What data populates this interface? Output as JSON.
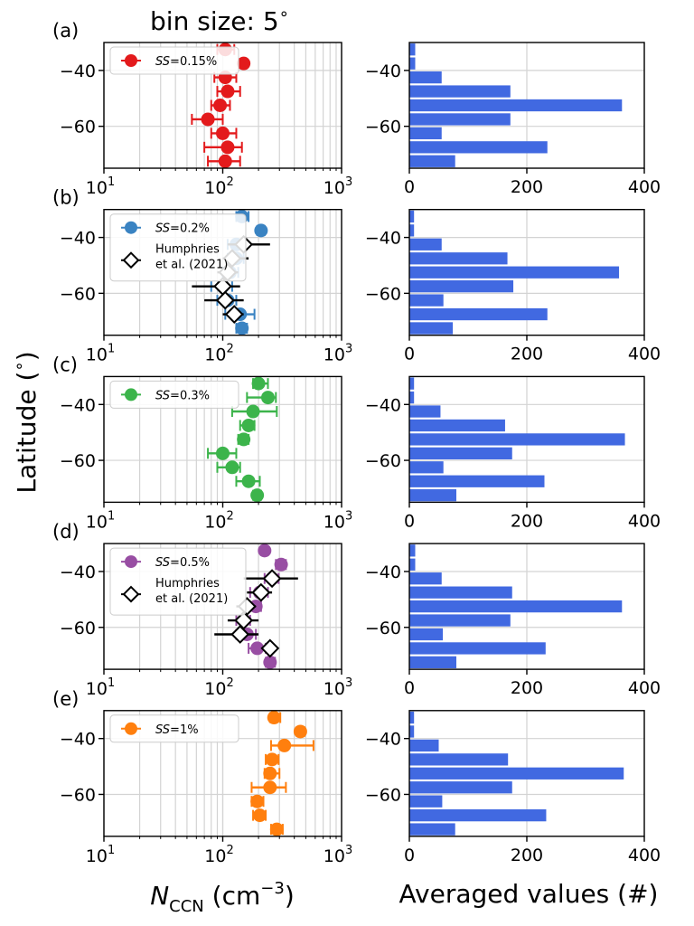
{
  "figure": {
    "title": "bin size: 5$^\\circ$",
    "title_text": "bin size: 5",
    "title_deg": "∘",
    "ylabel": "Latitude (°)",
    "ylabel_text": "Latitude (",
    "ylabel_deg": "∘",
    "ylabel_close": ")",
    "xlabel_left_N": "N",
    "xlabel_left_sub": "CCN",
    "xlabel_left_unit": " (cm",
    "xlabel_left_exp": "−3",
    "xlabel_left_close": ")",
    "xlabel_right": "Averaged values (#)"
  },
  "ticks": {
    "lat_labels": [
      "−40",
      "−60"
    ],
    "x_log_base": "10",
    "x_log_exps": [
      "1",
      "2",
      "3"
    ],
    "x_count_labels": [
      "0",
      "200",
      "400"
    ]
  },
  "colors": {
    "bars": "#4169e1",
    "grid": "#d3d3d3",
    "humphries": "#000000"
  },
  "chart_data": [
    {
      "panel": "(a)",
      "type": "scatter",
      "xscale": "log",
      "xlim": [
        10,
        1000
      ],
      "ylim": [
        -75,
        -30
      ],
      "grid": true,
      "legend_loc": "upper-left",
      "series": [
        {
          "name": "SS=0.15%",
          "name_prefix": "SS",
          "name_suffix": "=0.15%",
          "color": "#e31a1c",
          "lat": [
            -32.5,
            -37.5,
            -42.5,
            -47.5,
            -52.5,
            -57.5,
            -62.5,
            -67.5,
            -72.5
          ],
          "x": [
            105,
            150,
            105,
            110,
            95,
            75,
            100,
            110,
            105
          ],
          "xerr_low": [
            90,
            140,
            85,
            90,
            80,
            55,
            80,
            70,
            75
          ],
          "xerr_high": [
            125,
            160,
            130,
            140,
            115,
            100,
            130,
            145,
            140
          ]
        }
      ]
    },
    {
      "panel": "(b)",
      "type": "scatter",
      "xscale": "log",
      "xlim": [
        10,
        1000
      ],
      "ylim": [
        -75,
        -30
      ],
      "grid": true,
      "legend_loc": "upper-left",
      "series": [
        {
          "name": "SS=0.2%",
          "name_prefix": "SS",
          "name_suffix": "=0.2%",
          "color": "#3a83c2",
          "lat": [
            -32.5,
            -37.5,
            -42.5,
            -47.5,
            -52.5,
            -57.5,
            -62.5,
            -67.5,
            -72.5
          ],
          "x": [
            145,
            210,
            130,
            130,
            115,
            100,
            110,
            140,
            145
          ],
          "xerr_low": [
            130,
            195,
            110,
            110,
            100,
            80,
            90,
            105,
            130
          ],
          "xerr_high": [
            165,
            225,
            150,
            150,
            135,
            120,
            130,
            185,
            160
          ]
        },
        {
          "name": "Humphries et al. (2021)",
          "name_line1": "Humphries",
          "name_line2": "et al. (2021)",
          "color": "#000000",
          "marker": "diamond-open",
          "lat": [
            -42.5,
            -47.5,
            -52.5,
            -57.5,
            -62.5,
            -67.5
          ],
          "x": [
            150,
            120,
            110,
            100,
            105,
            125
          ],
          "xerr_low": [
            110,
            100,
            90,
            55,
            70,
            100
          ],
          "xerr_high": [
            250,
            165,
            135,
            140,
            150,
            150
          ]
        }
      ]
    },
    {
      "panel": "(c)",
      "type": "scatter",
      "xscale": "log",
      "xlim": [
        10,
        1000
      ],
      "ylim": [
        -75,
        -30
      ],
      "grid": true,
      "legend_loc": "upper-left",
      "series": [
        {
          "name": "SS=0.3%",
          "name_prefix": "SS",
          "name_suffix": "=0.3%",
          "color": "#3cb44b",
          "lat": [
            -32.5,
            -37.5,
            -42.5,
            -47.5,
            -52.5,
            -57.5,
            -62.5,
            -67.5,
            -72.5
          ],
          "x": [
            200,
            240,
            180,
            165,
            150,
            100,
            120,
            165,
            195
          ],
          "xerr_low": [
            180,
            160,
            120,
            140,
            135,
            75,
            90,
            130,
            180
          ],
          "xerr_high": [
            240,
            280,
            285,
            185,
            165,
            130,
            140,
            205,
            210
          ]
        }
      ]
    },
    {
      "panel": "(d)",
      "type": "scatter",
      "xscale": "log",
      "xlim": [
        10,
        1000
      ],
      "ylim": [
        -75,
        -30
      ],
      "grid": true,
      "legend_loc": "upper-left",
      "series": [
        {
          "name": "SS=0.5%",
          "name_prefix": "SS",
          "name_suffix": "=0.5%",
          "color": "#984ea3",
          "lat": [
            -32.5,
            -37.5,
            -42.5,
            -47.5,
            -52.5,
            -57.5,
            -62.5,
            -67.5,
            -72.5
          ],
          "x": [
            225,
            310,
            260,
            205,
            190,
            150,
            160,
            195,
            250
          ],
          "xerr_low": [
            210,
            280,
            225,
            170,
            170,
            130,
            130,
            165,
            230
          ],
          "xerr_high": [
            240,
            340,
            295,
            240,
            210,
            170,
            190,
            230,
            275
          ]
        },
        {
          "name": "Humphries et al. (2021)",
          "name_line1": "Humphries",
          "name_line2": "et al. (2021)",
          "color": "#000000",
          "marker": "diamond-open",
          "lat": [
            -42.5,
            -47.5,
            -52.5,
            -57.5,
            -62.5,
            -67.5
          ],
          "x": [
            260,
            210,
            160,
            150,
            140,
            250
          ],
          "xerr_low": [
            150,
            160,
            130,
            110,
            85,
            230
          ],
          "xerr_high": [
            430,
            260,
            190,
            200,
            200,
            270
          ]
        }
      ]
    },
    {
      "panel": "(e)",
      "type": "scatter",
      "xscale": "log",
      "xlim": [
        10,
        1000
      ],
      "ylim": [
        -75,
        -30
      ],
      "grid": true,
      "legend_loc": "upper-left",
      "series": [
        {
          "name": "SS=1%",
          "name_prefix": "SS",
          "name_suffix": "=1%",
          "color": "#ff7f0e",
          "lat": [
            -32.5,
            -37.5,
            -42.5,
            -47.5,
            -52.5,
            -57.5,
            -62.5,
            -67.5,
            -72.5
          ],
          "x": [
            270,
            450,
            330,
            260,
            250,
            250,
            195,
            205,
            285
          ],
          "xerr_low": [
            250,
            420,
            255,
            230,
            225,
            175,
            175,
            180,
            255
          ],
          "xerr_high": [
            305,
            485,
            580,
            295,
            300,
            340,
            220,
            230,
            320
          ]
        }
      ]
    },
    {
      "panel": "(a)-counts",
      "type": "bar",
      "orientation": "horizontal",
      "xlim": [
        0,
        400
      ],
      "ylim": [
        -75,
        -30
      ],
      "grid": true,
      "lat_bin_centers": [
        -32.5,
        -37.5,
        -42.5,
        -47.5,
        -52.5,
        -57.5,
        -62.5,
        -67.5,
        -72.5
      ],
      "values": [
        10,
        10,
        55,
        172,
        362,
        172,
        55,
        235,
        78
      ]
    },
    {
      "panel": "(b)-counts",
      "type": "bar",
      "orientation": "horizontal",
      "xlim": [
        0,
        400
      ],
      "ylim": [
        -75,
        -30
      ],
      "grid": true,
      "lat_bin_centers": [
        -32.5,
        -37.5,
        -42.5,
        -47.5,
        -52.5,
        -57.5,
        -62.5,
        -67.5,
        -72.5
      ],
      "values": [
        8,
        8,
        55,
        167,
        357,
        177,
        58,
        235,
        74
      ]
    },
    {
      "panel": "(c)-counts",
      "type": "bar",
      "orientation": "horizontal",
      "xlim": [
        0,
        400
      ],
      "ylim": [
        -75,
        -30
      ],
      "grid": true,
      "lat_bin_centers": [
        -32.5,
        -37.5,
        -42.5,
        -47.5,
        -52.5,
        -57.5,
        -62.5,
        -67.5,
        -72.5
      ],
      "values": [
        8,
        8,
        53,
        163,
        367,
        175,
        58,
        230,
        80
      ]
    },
    {
      "panel": "(d)-counts",
      "type": "bar",
      "orientation": "horizontal",
      "xlim": [
        0,
        400
      ],
      "ylim": [
        -75,
        -30
      ],
      "grid": true,
      "lat_bin_centers": [
        -32.5,
        -37.5,
        -42.5,
        -47.5,
        -52.5,
        -57.5,
        -62.5,
        -67.5,
        -72.5
      ],
      "values": [
        10,
        10,
        55,
        175,
        362,
        172,
        57,
        232,
        80
      ]
    },
    {
      "panel": "(e)-counts",
      "type": "bar",
      "orientation": "horizontal",
      "xlim": [
        0,
        400
      ],
      "ylim": [
        -75,
        -30
      ],
      "grid": true,
      "lat_bin_centers": [
        -32.5,
        -37.5,
        -42.5,
        -47.5,
        -52.5,
        -57.5,
        -62.5,
        -67.5,
        -72.5
      ],
      "values": [
        8,
        8,
        50,
        168,
        365,
        175,
        56,
        233,
        78
      ]
    }
  ]
}
